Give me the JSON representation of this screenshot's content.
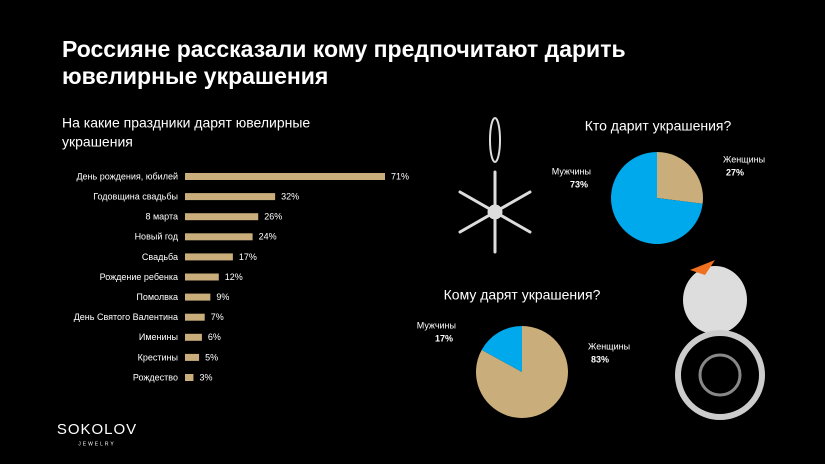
{
  "header": {
    "title": [
      "Россияне рассказали кому предпочитают дарить",
      "ювелирные украшения"
    ]
  },
  "logo": {
    "name": "SOKOLOV",
    "sub": "JEWELRY"
  },
  "chart_data": [
    {
      "type": "barh",
      "title": [
        "На какие праздники дарят ювелирные",
        "украшения"
      ],
      "categories": [
        "День рождения, юбилей",
        "Годовщина свадьбы",
        "8 марта",
        "Новый год",
        "Свадьба",
        "Рождение ребенка",
        "Помолвка",
        "День Святого Валентина",
        "Именины",
        "Крестины",
        "Рождество"
      ],
      "values": [
        71,
        32,
        26,
        24,
        17,
        12,
        9,
        7,
        6,
        5,
        3
      ],
      "value_labels": [
        "71%",
        "32%",
        "26%",
        "24%",
        "17%",
        "12%",
        "9%",
        "7%",
        "6%",
        "5%",
        "3%"
      ],
      "color": "#c9ad7a"
    },
    {
      "type": "pie",
      "title": "Кто дарит украшения?",
      "categories": [
        "Женщины",
        "Мужчины"
      ],
      "values": [
        27,
        73
      ],
      "value_labels": [
        "27%",
        "73%"
      ],
      "colors": [
        "#c9ad7a",
        "#00a8ec"
      ]
    },
    {
      "type": "pie",
      "title": "Кому дарят украшения?",
      "categories": [
        "Женщины",
        "Мужчины"
      ],
      "values": [
        83,
        17
      ],
      "value_labels": [
        "83%",
        "17%"
      ],
      "colors": [
        "#c9ad7a",
        "#00a8ec"
      ]
    }
  ]
}
